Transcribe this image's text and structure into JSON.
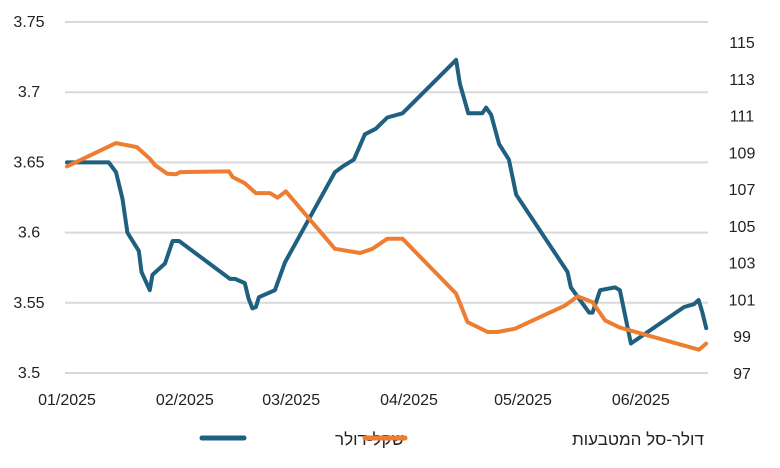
{
  "chart_data": {
    "type": "line",
    "title": "",
    "xlabel": "",
    "x_unit": "days since 01/01/2025",
    "x_ticks": [
      {
        "day": 0,
        "label": "01/2025"
      },
      {
        "day": 31,
        "label": "02/2025"
      },
      {
        "day": 59,
        "label": "03/2025"
      },
      {
        "day": 90,
        "label": "04/2025"
      },
      {
        "day": 120,
        "label": "05/2025"
      },
      {
        "day": 151,
        "label": "06/2025"
      }
    ],
    "xlim": [
      0,
      168.5
    ],
    "y_left": {
      "ylim": [
        3.5,
        3.75
      ],
      "ticks": [
        "3.5",
        "3.55",
        "3.6",
        "3.65",
        "3.7",
        "3.75"
      ],
      "grid": true
    },
    "y_right": {
      "ylim": [
        97,
        116.1
      ],
      "ticks": [
        "97",
        "99",
        "101",
        "103",
        "105",
        "107",
        "109",
        "111",
        "113",
        "115"
      ]
    },
    "legend_position": "bottom-center",
    "series": [
      {
        "name": "שקל-דולר",
        "axis": "left",
        "color": "#1f5f7f",
        "points": [
          [
            0,
            3.65
          ],
          [
            11,
            3.65
          ],
          [
            12.9,
            3.643
          ],
          [
            14.6,
            3.624
          ],
          [
            15.9,
            3.6
          ],
          [
            18.9,
            3.587
          ],
          [
            19.6,
            3.572
          ],
          [
            21.8,
            3.559
          ],
          [
            22.5,
            3.57
          ],
          [
            25.8,
            3.578
          ],
          [
            27.8,
            3.594
          ],
          [
            29.5,
            3.594
          ],
          [
            42.9,
            3.567
          ],
          [
            44.2,
            3.567
          ],
          [
            46.8,
            3.564
          ],
          [
            47.8,
            3.553
          ],
          [
            48.8,
            3.546
          ],
          [
            49.7,
            3.547
          ],
          [
            50.5,
            3.554
          ],
          [
            54.7,
            3.559
          ],
          [
            57.4,
            3.579
          ],
          [
            70.5,
            3.643
          ],
          [
            72.5,
            3.647
          ],
          [
            75.5,
            3.652
          ],
          [
            78.4,
            3.67
          ],
          [
            81.3,
            3.674
          ],
          [
            84.3,
            3.682
          ],
          [
            88.3,
            3.685
          ],
          [
            102.4,
            3.723
          ],
          [
            103.4,
            3.706
          ],
          [
            105.6,
            3.685
          ],
          [
            109.3,
            3.685
          ],
          [
            110.3,
            3.689
          ],
          [
            111.6,
            3.684
          ],
          [
            113.7,
            3.663
          ],
          [
            116.3,
            3.652
          ],
          [
            118.2,
            3.627
          ],
          [
            131.7,
            3.572
          ],
          [
            132.6,
            3.561
          ],
          [
            137.4,
            3.543
          ],
          [
            138.3,
            3.543
          ],
          [
            140.3,
            3.559
          ],
          [
            144.2,
            3.561
          ],
          [
            145.5,
            3.559
          ],
          [
            148.4,
            3.521
          ],
          [
            162.4,
            3.547
          ],
          [
            165,
            3.549
          ],
          [
            166.2,
            3.552
          ],
          [
            167.2,
            3.543
          ],
          [
            168.2,
            3.532
          ]
        ]
      },
      {
        "name": "דולר-סל המטבעות",
        "axis": "right",
        "color": "#ed7d31",
        "points": [
          [
            0,
            108.24
          ],
          [
            12.9,
            109.51
          ],
          [
            18.4,
            109.29
          ],
          [
            21.8,
            108.66
          ],
          [
            23.2,
            108.3
          ],
          [
            26.4,
            107.84
          ],
          [
            28.7,
            107.81
          ],
          [
            29.7,
            107.93
          ],
          [
            42.6,
            107.97
          ],
          [
            43.6,
            107.66
          ],
          [
            46.8,
            107.33
          ],
          [
            49.7,
            106.79
          ],
          [
            53.4,
            106.79
          ],
          [
            55.4,
            106.54
          ],
          [
            57.6,
            106.88
          ],
          [
            70.5,
            103.76
          ],
          [
            77.1,
            103.53
          ],
          [
            80.4,
            103.76
          ],
          [
            84.3,
            104.31
          ],
          [
            88.3,
            104.31
          ],
          [
            102.4,
            101.32
          ],
          [
            105.4,
            99.77
          ],
          [
            110.7,
            99.23
          ],
          [
            113.3,
            99.23
          ],
          [
            117.9,
            99.41
          ],
          [
            131.1,
            100.68
          ],
          [
            134.4,
            101.17
          ],
          [
            138.3,
            100.86
          ],
          [
            141.6,
            99.86
          ],
          [
            145.5,
            99.47
          ],
          [
            166.3,
            98.27
          ],
          [
            168.2,
            98.6
          ]
        ]
      }
    ]
  }
}
